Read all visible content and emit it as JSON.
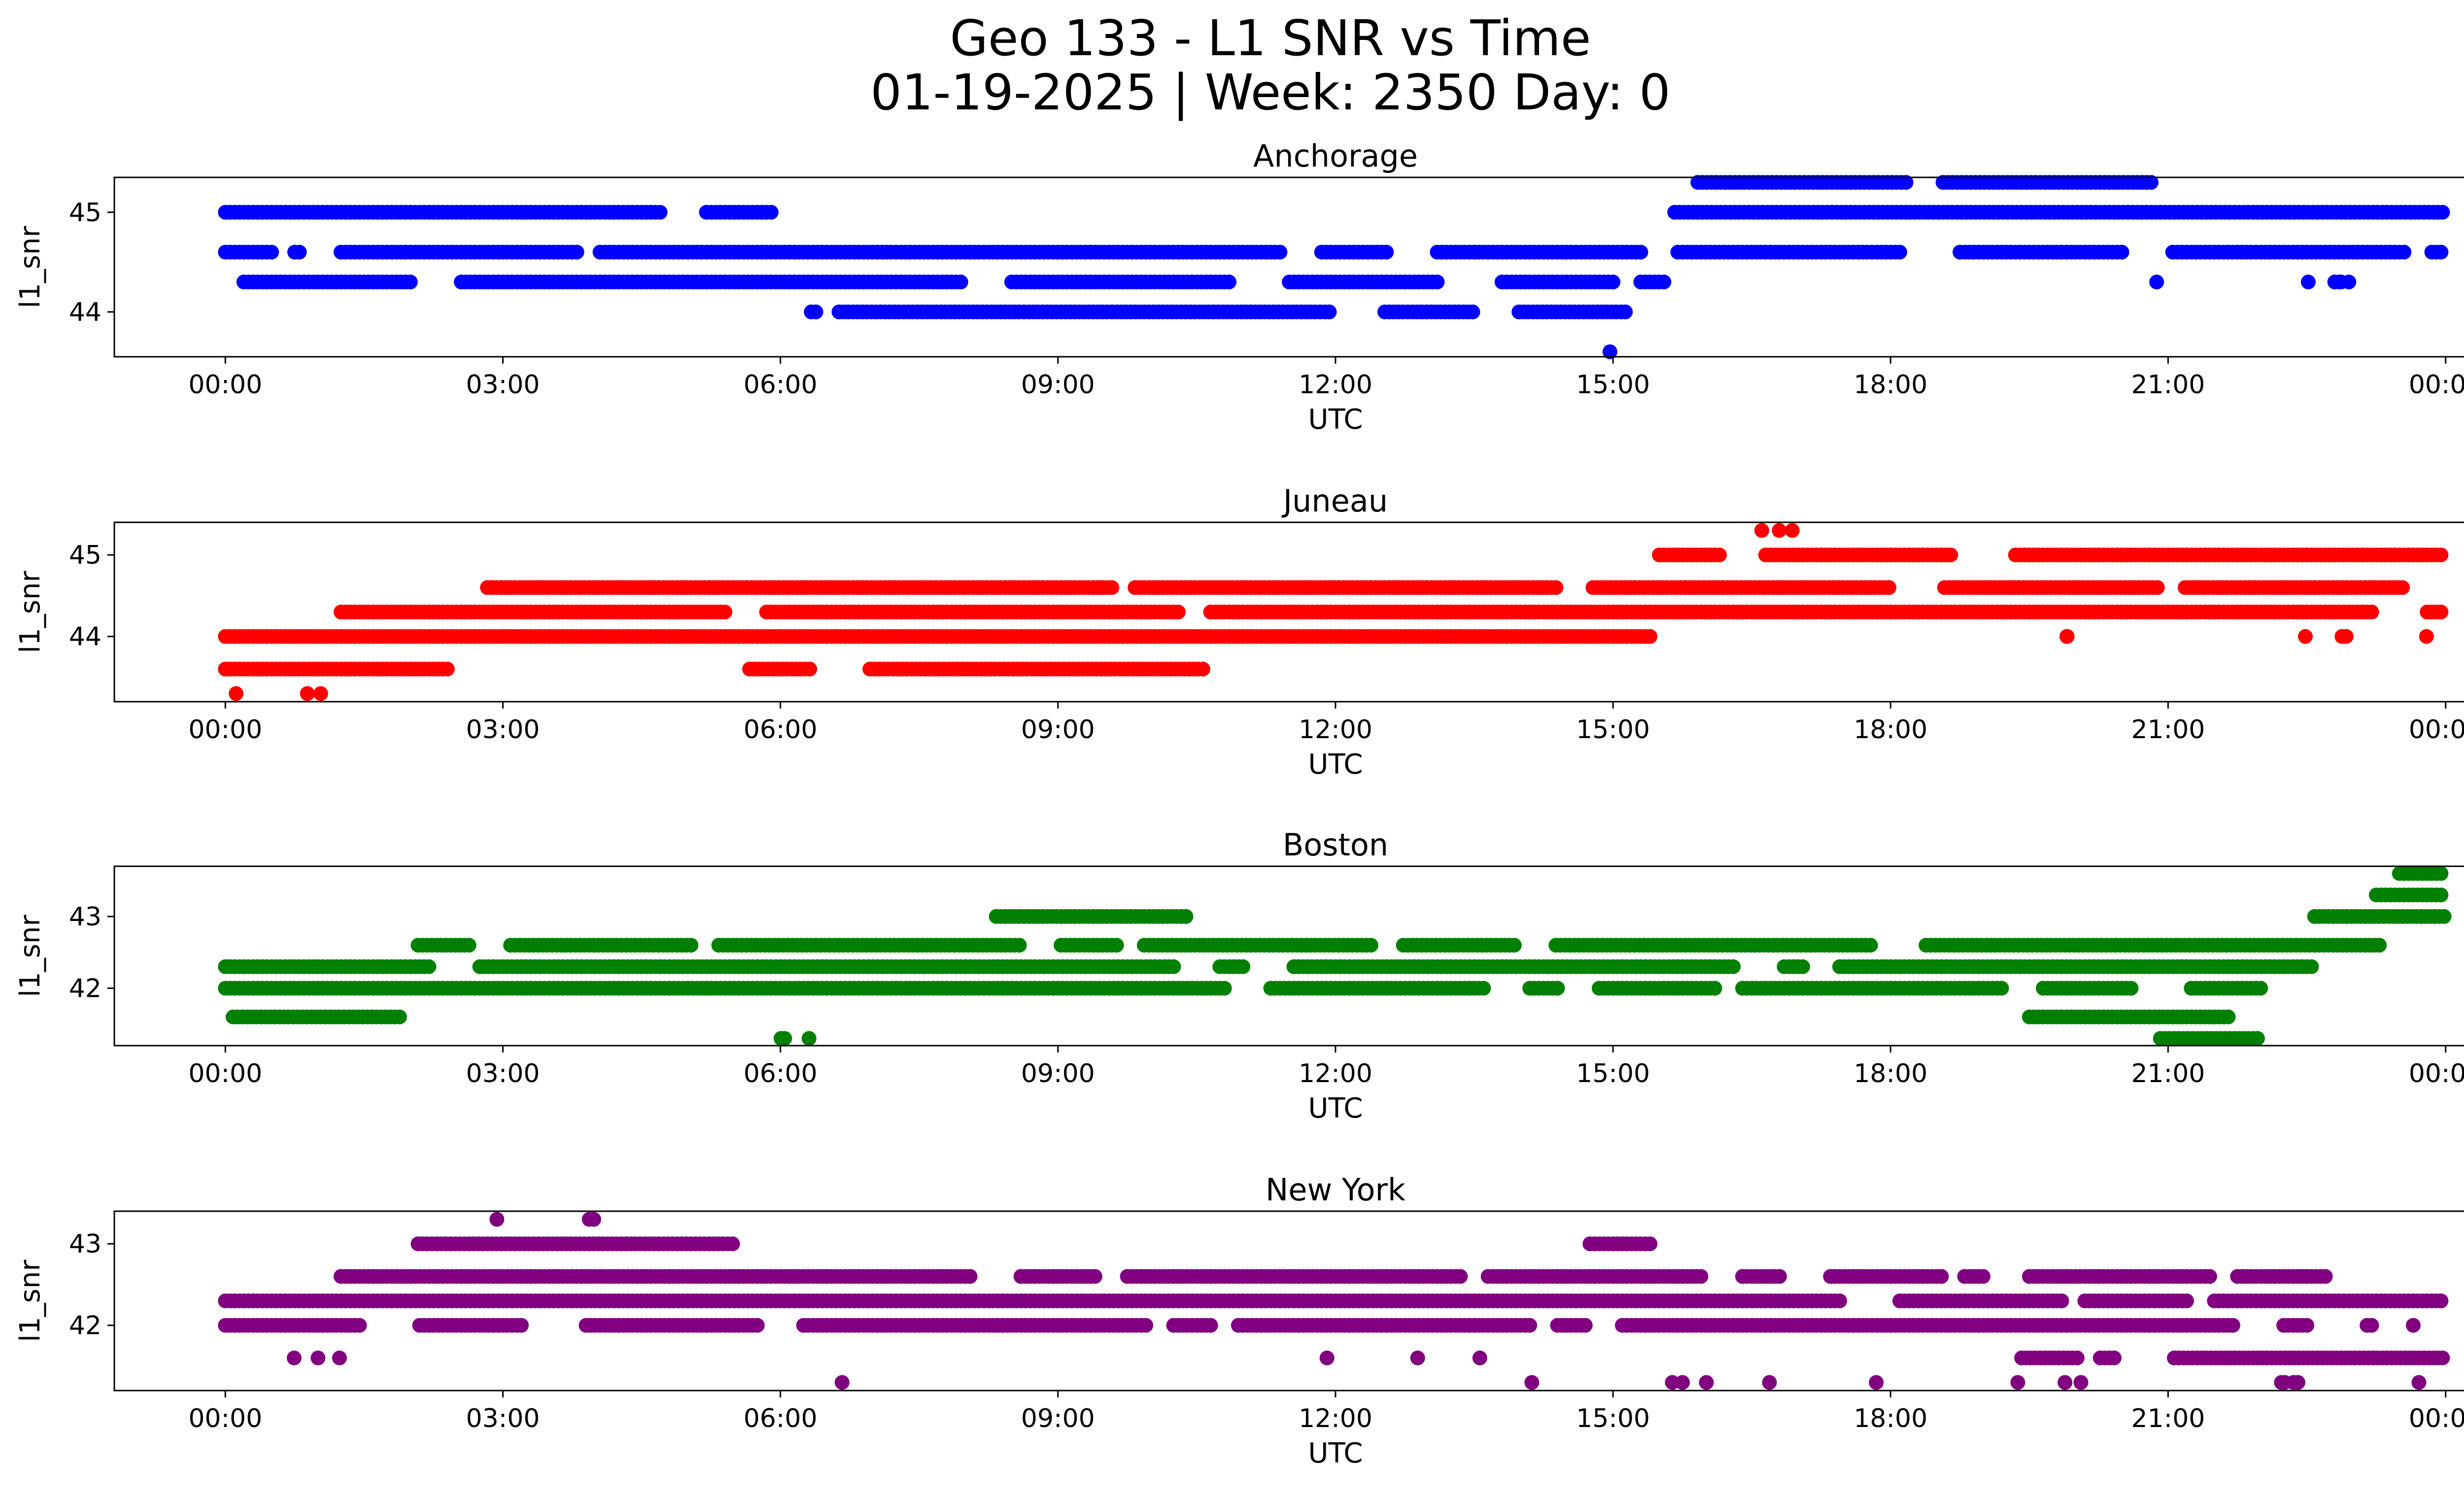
{
  "figure": {
    "title_line1": "Geo 133 - L1 SNR vs Time",
    "title_line2": "01-19-2025 | Week: 2350 Day: 0"
  },
  "chart_data": [
    {
      "type": "scatter",
      "title": "Anchorage",
      "xlabel": "UTC",
      "ylabel": "l1_snr",
      "color": "#0000ff",
      "xlim": [
        "00:00",
        "00:00"
      ],
      "xticks": [
        "00:00",
        "03:00",
        "06:00",
        "09:00",
        "12:00",
        "15:00",
        "18:00",
        "21:00",
        "00:00"
      ],
      "ylim": [
        43.55,
        45.35
      ],
      "yticks": [
        44,
        45
      ],
      "snr_levels": [
        43.6,
        44.0,
        44.3,
        44.6,
        45.0,
        45.3
      ],
      "segments": [
        {
          "snr": 45.0,
          "from": "00:00",
          "to": "05:55",
          "density": "dense with gaps"
        },
        {
          "snr": 45.0,
          "from": "15:40",
          "to": "24:00",
          "density": "dense"
        },
        {
          "snr": 44.6,
          "from": "00:00",
          "to": "24:00",
          "density": "dense with gaps"
        },
        {
          "snr": 44.3,
          "from": "00:12",
          "to": "15:35",
          "density": "dense with gaps"
        },
        {
          "snr": 44.3,
          "from": "20:00",
          "to": "23:45",
          "density": "sparse"
        },
        {
          "snr": 44.0,
          "from": "06:20",
          "to": "15:10",
          "density": "dense with gaps"
        },
        {
          "snr": 45.3,
          "from": "15:55",
          "to": "20:50",
          "density": "dense with gaps"
        },
        {
          "snr": 43.6,
          "from": "14:58",
          "to": "15:00",
          "density": "single"
        }
      ]
    },
    {
      "type": "scatter",
      "title": "Juneau",
      "xlabel": "UTC",
      "ylabel": "l1_snr",
      "color": "#ff0000",
      "xlim": [
        "00:00",
        "00:00"
      ],
      "xticks": [
        "00:00",
        "03:00",
        "06:00",
        "09:00",
        "12:00",
        "15:00",
        "18:00",
        "21:00",
        "00:00"
      ],
      "ylim": [
        43.2,
        45.4
      ],
      "yticks": [
        44,
        45
      ],
      "snr_levels": [
        43.3,
        43.6,
        44.0,
        44.3,
        44.6,
        45.0,
        45.3
      ],
      "segments": [
        {
          "snr": 43.3,
          "from": "00:00",
          "to": "01:15",
          "density": "sparse"
        },
        {
          "snr": 43.6,
          "from": "00:00",
          "to": "02:25",
          "density": "dense"
        },
        {
          "snr": 43.6,
          "from": "05:40",
          "to": "10:35",
          "density": "dense with gaps"
        },
        {
          "snr": 44.0,
          "from": "00:00",
          "to": "15:25",
          "density": "dense"
        },
        {
          "snr": 44.0,
          "from": "19:30",
          "to": "24:00",
          "density": "sparse"
        },
        {
          "snr": 44.3,
          "from": "01:15",
          "to": "24:00",
          "density": "dense with gaps"
        },
        {
          "snr": 44.6,
          "from": "02:50",
          "to": "24:00",
          "density": "dense with gaps"
        },
        {
          "snr": 45.0,
          "from": "15:30",
          "to": "24:00",
          "density": "dense with gaps"
        },
        {
          "snr": 45.3,
          "from": "16:35",
          "to": "17:00",
          "density": "sparse"
        }
      ]
    },
    {
      "type": "scatter",
      "title": "Boston",
      "xlabel": "UTC",
      "ylabel": "l1_snr",
      "color": "#008000",
      "xlim": [
        "00:00",
        "00:00"
      ],
      "xticks": [
        "00:00",
        "03:00",
        "06:00",
        "09:00",
        "12:00",
        "15:00",
        "18:00",
        "21:00",
        "00:00"
      ],
      "ylim": [
        41.2,
        43.7
      ],
      "yticks": [
        42,
        43
      ],
      "snr_levels": [
        41.3,
        41.6,
        42.0,
        42.3,
        42.6,
        43.0,
        43.3,
        43.6
      ],
      "segments": [
        {
          "snr": 41.3,
          "from": "05:25",
          "to": "06:45",
          "density": "sparse"
        },
        {
          "snr": 41.3,
          "from": "20:55",
          "to": "22:00",
          "density": "dense"
        },
        {
          "snr": 41.6,
          "from": "00:05",
          "to": "01:55",
          "density": "dense"
        },
        {
          "snr": 41.6,
          "from": "19:30",
          "to": "21:40",
          "density": "dense"
        },
        {
          "snr": 42.0,
          "from": "00:00",
          "to": "22:30",
          "density": "dense with gaps"
        },
        {
          "snr": 42.3,
          "from": "00:00",
          "to": "22:35",
          "density": "dense with gaps"
        },
        {
          "snr": 42.6,
          "from": "02:05",
          "to": "23:20",
          "density": "dense with gaps"
        },
        {
          "snr": 43.0,
          "from": "08:20",
          "to": "10:25",
          "density": "dense"
        },
        {
          "snr": 43.0,
          "from": "22:35",
          "to": "24:00",
          "density": "dense"
        },
        {
          "snr": 43.3,
          "from": "23:15",
          "to": "24:00",
          "density": "dense"
        },
        {
          "snr": 43.6,
          "from": "23:30",
          "to": "24:00",
          "density": "dense"
        }
      ]
    },
    {
      "type": "scatter",
      "title": "New York",
      "xlabel": "UTC",
      "ylabel": "l1_snr",
      "color": "#800080",
      "xlim": [
        "00:00",
        "00:00"
      ],
      "xticks": [
        "00:00",
        "03:00",
        "06:00",
        "09:00",
        "12:00",
        "15:00",
        "18:00",
        "21:00",
        "00:00"
      ],
      "ylim": [
        41.2,
        43.4
      ],
      "yticks": [
        42,
        43
      ],
      "snr_levels": [
        41.3,
        41.6,
        42.0,
        42.3,
        42.6,
        43.0,
        43.3
      ],
      "segments": [
        {
          "snr": 41.3,
          "from": "06:40",
          "to": "06:45",
          "density": "single"
        },
        {
          "snr": 41.3,
          "from": "13:30",
          "to": "23:55",
          "density": "sparse"
        },
        {
          "snr": 41.6,
          "from": "00:00",
          "to": "01:15",
          "density": "sparse"
        },
        {
          "snr": 41.6,
          "from": "11:45",
          "to": "13:35",
          "density": "sparse"
        },
        {
          "snr": 41.6,
          "from": "19:25",
          "to": "24:00",
          "density": "dense with gaps"
        },
        {
          "snr": 42.0,
          "from": "00:00",
          "to": "24:00",
          "density": "dense with gaps"
        },
        {
          "snr": 42.3,
          "from": "00:00",
          "to": "24:00",
          "density": "dense with gaps"
        },
        {
          "snr": 42.6,
          "from": "01:15",
          "to": "22:45",
          "density": "dense with gaps"
        },
        {
          "snr": 43.0,
          "from": "02:05",
          "to": "05:30",
          "density": "dense"
        },
        {
          "snr": 43.0,
          "from": "14:45",
          "to": "15:25",
          "density": "dense"
        },
        {
          "snr": 43.3,
          "from": "02:55",
          "to": "04:50",
          "density": "sparse"
        }
      ]
    }
  ]
}
